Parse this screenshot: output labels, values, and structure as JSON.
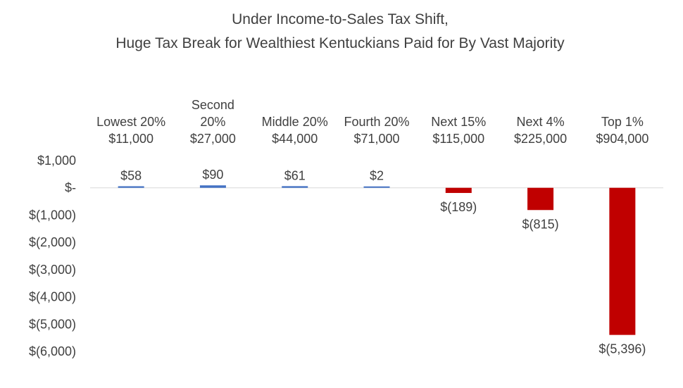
{
  "chart_data": {
    "type": "bar",
    "title_lines": [
      "Under Income-to-Sales Tax Shift,",
      "Huge Tax Break for Wealthiest Kentuckians Paid for By Vast Majority"
    ],
    "categories": [
      {
        "lines": [
          "Lowest 20%",
          "$11,000"
        ]
      },
      {
        "lines": [
          "Second",
          "20%",
          "$27,000"
        ]
      },
      {
        "lines": [
          "Middle 20%",
          "$44,000"
        ]
      },
      {
        "lines": [
          "Fourth 20%",
          "$71,000"
        ]
      },
      {
        "lines": [
          "Next 15%",
          "$115,000"
        ]
      },
      {
        "lines": [
          "Next 4%",
          "$225,000"
        ]
      },
      {
        "lines": [
          "Top 1%",
          "$904,000"
        ]
      }
    ],
    "values": [
      58,
      90,
      61,
      2,
      -189,
      -815,
      -5396
    ],
    "data_labels": [
      "$58",
      "$90",
      "$61",
      "$2",
      "$(189)",
      "$(815)",
      "$(5,396)"
    ],
    "ylim": [
      -6000,
      1000
    ],
    "yticks": [
      1000,
      0,
      -1000,
      -2000,
      -3000,
      -4000,
      -5000,
      -6000
    ],
    "ytick_labels": [
      "$1,000",
      "$-",
      "$(1,000)",
      "$(2,000)",
      "$(3,000)",
      "$(4,000)",
      "$(5,000)",
      "$(6,000)"
    ],
    "grid": false,
    "colors": {
      "positive": "#4472c4",
      "negative": "#c00000",
      "zero_line": "#d9d9d9",
      "text": "#404040"
    }
  }
}
